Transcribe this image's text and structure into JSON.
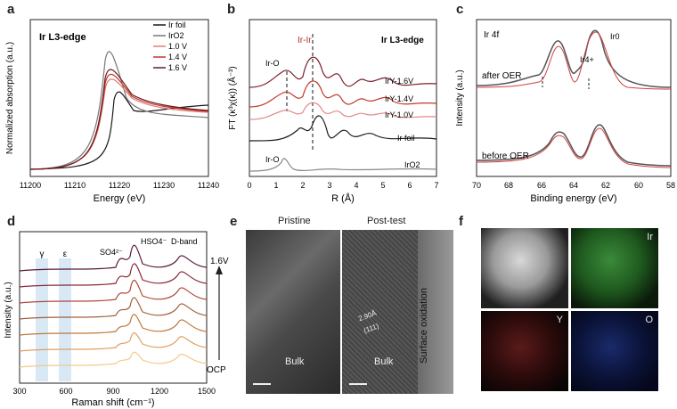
{
  "letters": [
    "a",
    "b",
    "c",
    "d",
    "e",
    "f"
  ],
  "panel_a": {
    "title": "Ir L3-edge",
    "xlabel": "Energy (eV)",
    "ylabel": "Normalized absorption (a.u.)",
    "xticks": [
      "11200",
      "11210",
      "11220",
      "11230",
      "11240"
    ],
    "legend": [
      {
        "label": "Ir foil",
        "color": "#1a1a1a"
      },
      {
        "label": "IrO2",
        "color": "#777777"
      },
      {
        "label": "1.0 V",
        "color": "#e07a7a"
      },
      {
        "label": "1.4 V",
        "color": "#c0392b"
      },
      {
        "label": "1.6 V",
        "color": "#6b1a1a"
      }
    ]
  },
  "panel_b": {
    "title": "Ir L3-edge",
    "xlabel": "R (Å)",
    "ylabel": "FT (κ³χ(κ)) (Å⁻³)",
    "xticks": [
      "0",
      "1",
      "2",
      "3",
      "4",
      "5",
      "6",
      "7"
    ],
    "annotations": [
      "Ir-Ir",
      "Ir-O",
      "Ir-O"
    ],
    "series": [
      {
        "name": "IrY-1.6V",
        "color": "#7b1f2a"
      },
      {
        "name": "IrY-1.4V",
        "color": "#c0392b"
      },
      {
        "name": "IrY-1.0V",
        "color": "#e08a8a"
      },
      {
        "name": "Ir foil",
        "color": "#1a1a1a"
      },
      {
        "name": "IrO2",
        "color": "#888888"
      }
    ]
  },
  "panel_c": {
    "subtitle": "Ir 4f",
    "xlabel": "Binding energy (eV)",
    "ylabel": "Intensity (a.u.)",
    "xticks": [
      "70",
      "68",
      "66",
      "64",
      "62",
      "60",
      "58"
    ],
    "labels": [
      "after OER",
      "before OER",
      "Ir4+",
      "Ir0"
    ]
  },
  "panel_d": {
    "xlabel": "Raman shift (cm⁻¹)",
    "ylabel": "Intensity (a.u.)",
    "xticks": [
      "300",
      "600",
      "900",
      "1200",
      "1500"
    ],
    "labels": [
      "γ",
      "ε",
      "SO4²⁻",
      "HSO4⁻",
      "D-band",
      "1.6V",
      "OCP"
    ],
    "colors": [
      "#5a1a3a",
      "#8a2a3a",
      "#b04a3a",
      "#a0623a",
      "#c0783a",
      "#e0a060",
      "#f2c98a"
    ]
  },
  "panel_e": {
    "left_title": "Pristine",
    "right_title": "Post-test",
    "left_label": "Bulk",
    "right_label": "Bulk",
    "side_label": "Surface oxidation",
    "lattice": "2.90Å",
    "plane": "(111)"
  },
  "panel_f": {
    "labels": [
      "Ir",
      "Y",
      "O"
    ]
  }
}
